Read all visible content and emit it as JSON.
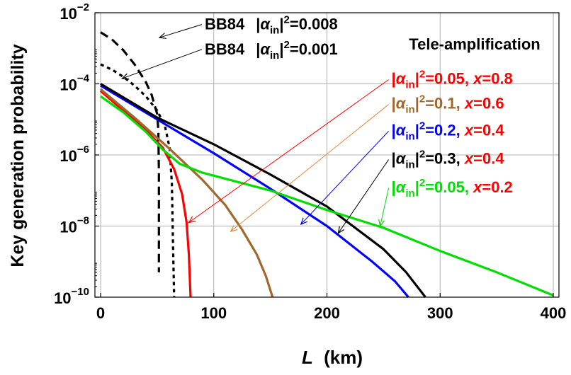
{
  "chart_data": {
    "type": "line",
    "title": "",
    "xlabel_var": "L",
    "xlabel_unit": "(km)",
    "ylabel": "Key generation probability",
    "yscale": "log",
    "xlim": [
      -5,
      405
    ],
    "ylim_exponent": [
      -10,
      -2
    ],
    "x_ticks": [
      "0",
      "100",
      "200",
      "300",
      "400"
    ],
    "y_tick_base": "10",
    "y_ticks": [
      {
        "exp": -2,
        "label": "−2"
      },
      {
        "exp": -4,
        "label": "−4"
      },
      {
        "exp": -6,
        "label": "−6"
      },
      {
        "exp": -8,
        "label": "−8"
      },
      {
        "exp": -10,
        "label": "−10"
      }
    ],
    "grid": true,
    "legend_header": "Tele-amplification",
    "series": [
      {
        "id": "bb84_0008",
        "name": "BB84 |αin|²=0.008",
        "prefix": "BB84",
        "alpha_sq": "0.008",
        "color": "#000000",
        "style": "dashed",
        "points": [
          [
            0,
            -2.55
          ],
          [
            10,
            -2.75
          ],
          [
            20,
            -3.05
          ],
          [
            30,
            -3.45
          ],
          [
            40,
            -3.95
          ],
          [
            45,
            -4.3
          ],
          [
            50,
            -4.85
          ],
          [
            51,
            -5.3
          ],
          [
            51.5,
            -6.5
          ],
          [
            51.5,
            -9.3
          ]
        ]
      },
      {
        "id": "bb84_0001",
        "name": "BB84 |αin|²=0.001",
        "prefix": "BB84",
        "alpha_sq": "0.001",
        "color": "#000000",
        "style": "dotted",
        "points": [
          [
            0,
            -3.45
          ],
          [
            10,
            -3.6
          ],
          [
            20,
            -3.8
          ],
          [
            30,
            -4.05
          ],
          [
            40,
            -4.35
          ],
          [
            50,
            -4.75
          ],
          [
            57,
            -5.2
          ],
          [
            61,
            -5.8
          ],
          [
            63,
            -6.8
          ],
          [
            64,
            -8.5
          ],
          [
            65,
            -10
          ]
        ]
      },
      {
        "id": "tele_005_08",
        "name": "|αin|²=0.05, x=0.8",
        "alpha_sq": "0.05",
        "x": "0.8",
        "color": "#ff0000",
        "style": "solid",
        "points": [
          [
            0,
            -4.2
          ],
          [
            20,
            -4.75
          ],
          [
            40,
            -5.3
          ],
          [
            55,
            -5.8
          ],
          [
            65,
            -6.4
          ],
          [
            72,
            -7.1
          ],
          [
            76,
            -7.9
          ],
          [
            78,
            -8.8
          ],
          [
            79.5,
            -10
          ]
        ]
      },
      {
        "id": "tele_01_06",
        "name": "|αin|²=0.1, x=0.6",
        "alpha_sq": "0.1",
        "x": "0.6",
        "color": "#a0682a",
        "style": "solid",
        "points": [
          [
            0,
            -4.15
          ],
          [
            30,
            -4.95
          ],
          [
            60,
            -5.8
          ],
          [
            90,
            -6.7
          ],
          [
            110,
            -7.4
          ],
          [
            125,
            -8.1
          ],
          [
            138,
            -8.8
          ],
          [
            146,
            -9.4
          ],
          [
            152,
            -10
          ]
        ]
      },
      {
        "id": "tele_02_04",
        "name": "|αin|²=0.2, x=0.4",
        "alpha_sq": "0.2",
        "x": "0.4",
        "color": "#0000ff",
        "style": "solid",
        "points": [
          [
            0,
            -4.05
          ],
          [
            50,
            -5.0
          ],
          [
            100,
            -5.95
          ],
          [
            150,
            -6.95
          ],
          [
            200,
            -8.0
          ],
          [
            240,
            -9.0
          ],
          [
            260,
            -9.55
          ],
          [
            272,
            -10
          ]
        ]
      },
      {
        "id": "tele_03_04",
        "name": "|αin|²=0.3, x=0.4",
        "alpha_sq": "0.3",
        "x": "0.4",
        "color": "#000000",
        "style": "solid",
        "points": [
          [
            0,
            -4.0
          ],
          [
            50,
            -4.95
          ],
          [
            100,
            -5.7
          ],
          [
            150,
            -6.55
          ],
          [
            200,
            -7.45
          ],
          [
            250,
            -8.65
          ],
          [
            270,
            -9.3
          ],
          [
            287,
            -10
          ]
        ]
      },
      {
        "id": "tele_005_02",
        "name": "|αin|²=0.05, x=0.2",
        "alpha_sq": "0.05",
        "x": "0.2",
        "color": "#00dd00",
        "style": "solid",
        "points": [
          [
            0,
            -4.35
          ],
          [
            20,
            -4.8
          ],
          [
            40,
            -5.35
          ],
          [
            55,
            -5.85
          ],
          [
            70,
            -6.25
          ],
          [
            90,
            -6.5
          ],
          [
            120,
            -6.75
          ],
          [
            150,
            -7.0
          ],
          [
            200,
            -7.55
          ],
          [
            250,
            -8.05
          ],
          [
            300,
            -8.7
          ],
          [
            350,
            -9.3
          ],
          [
            400,
            -9.95
          ]
        ]
      }
    ],
    "annotations": [
      {
        "series": "bb84_0008",
        "text_x": 92,
        "text_y": -2.47,
        "point": [
          52,
          -2.7
        ],
        "color": "#000000"
      },
      {
        "series": "bb84_0001",
        "text_x": 92,
        "text_y": -3.17,
        "point": [
          19,
          -3.85
        ],
        "color": "#000000"
      },
      {
        "series": "tele_005_08",
        "text_x": 257,
        "text_y": -4.0,
        "point": [
          78,
          -7.9
        ],
        "color": "#ff0000"
      },
      {
        "series": "tele_01_06",
        "text_x": 257,
        "text_y": -4.7,
        "point": [
          115,
          -8.15
        ],
        "color": "#e08a3a"
      },
      {
        "series": "tele_02_04",
        "text_x": 257,
        "text_y": -5.45,
        "point": [
          177,
          -7.95
        ],
        "color": "#0000ff"
      },
      {
        "series": "tele_03_04",
        "text_x": 257,
        "text_y": -6.25,
        "point": [
          210,
          -8.2
        ],
        "color": "#000000"
      },
      {
        "series": "tele_005_02",
        "text_x": 257,
        "text_y": -7.05,
        "point": [
          247,
          -8.0
        ],
        "color": "#00dd00"
      }
    ],
    "legend_style": {
      "x_color": "#ff0000"
    }
  }
}
